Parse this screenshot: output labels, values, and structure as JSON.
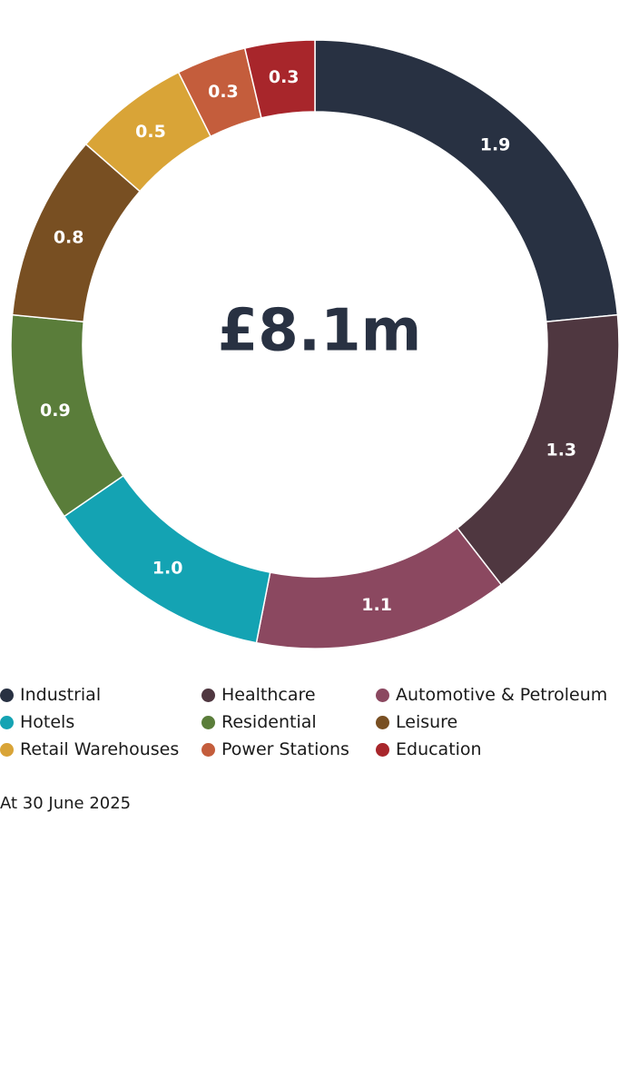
{
  "chart_data": {
    "type": "pie",
    "donut": true,
    "total_label": "£8.1m",
    "unit": "£m",
    "categories": [
      "Industrial",
      "Healthcare",
      "Automotive & Petroleum",
      "Hotels",
      "Residential",
      "Leisure",
      "Retail Warehouses",
      "Power Stations",
      "Education"
    ],
    "values": [
      1.9,
      1.3,
      1.1,
      1.0,
      0.9,
      0.8,
      0.5,
      0.3,
      0.3
    ],
    "value_labels": [
      "1.9",
      "1.3",
      "1.1",
      "1.0",
      "0.9",
      "0.8",
      "0.5",
      "0.3",
      "0.3"
    ],
    "colors": [
      "#283142",
      "#4f3740",
      "#8b4860",
      "#14a3b3",
      "#5a7d3a",
      "#784f22",
      "#d9a437",
      "#c45d3c",
      "#a8262b"
    ],
    "start_angle_deg": 0,
    "direction": "clockwise",
    "legend_position": "bottom"
  },
  "legend": [
    {
      "label": "Industrial",
      "color": "#283142"
    },
    {
      "label": "Healthcare",
      "color": "#4f3740"
    },
    {
      "label": "Automotive & Petroleum",
      "color": "#8b4860"
    },
    {
      "label": "Hotels",
      "color": "#14a3b3"
    },
    {
      "label": "Residential",
      "color": "#5a7d3a"
    },
    {
      "label": "Leisure",
      "color": "#784f22"
    },
    {
      "label": "Retail Warehouses",
      "color": "#d9a437"
    },
    {
      "label": "Power Stations",
      "color": "#c45d3c"
    },
    {
      "label": "Education",
      "color": "#a8262b"
    }
  ],
  "note": "At 30 June 2025"
}
